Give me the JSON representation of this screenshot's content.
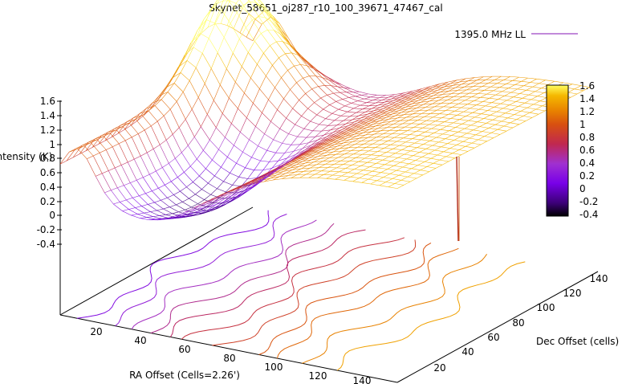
{
  "chart_data": {
    "type": "surface3d",
    "title": "Skynet_58651_oj287_r10_100_39671_47467_cal",
    "legend": {
      "label": "1395.0 MHz LL",
      "color": "#9c44c4",
      "placement": "top-right"
    },
    "zlabel": "Intensity (K)",
    "xlabel": "RA Offset (Cells=2.26')",
    "ylabel": "Dec Offset (cells)",
    "zticks": [
      "1.6",
      "1.4",
      "1.2",
      "1",
      "0.8",
      "0.6",
      "0.4",
      "0.2",
      "0",
      "-0.2",
      "-0.4"
    ],
    "xticks": [
      "20",
      "40",
      "60",
      "80",
      "100",
      "120",
      "140"
    ],
    "yticks": [
      "20",
      "40",
      "60",
      "80",
      "100",
      "120",
      "140"
    ],
    "colorbar_ticks": [
      "1.6",
      "1.4",
      "1.2",
      "1",
      "0.8",
      "0.6",
      "0.4",
      "0.2",
      "0",
      "-0.2",
      "-0.4"
    ],
    "zlim": [
      -0.4,
      1.6
    ],
    "xlim": [
      0,
      150
    ],
    "ylim": [
      0,
      150
    ],
    "colormap": [
      "#000000",
      "#3c0078",
      "#7800e8",
      "#a030d0",
      "#c02850",
      "#d85010",
      "#e88000",
      "#f5b800",
      "#ffff60"
    ],
    "contours": true,
    "spike": {
      "ra": 122,
      "dec": 118,
      "z_min": -0.45
    }
  }
}
